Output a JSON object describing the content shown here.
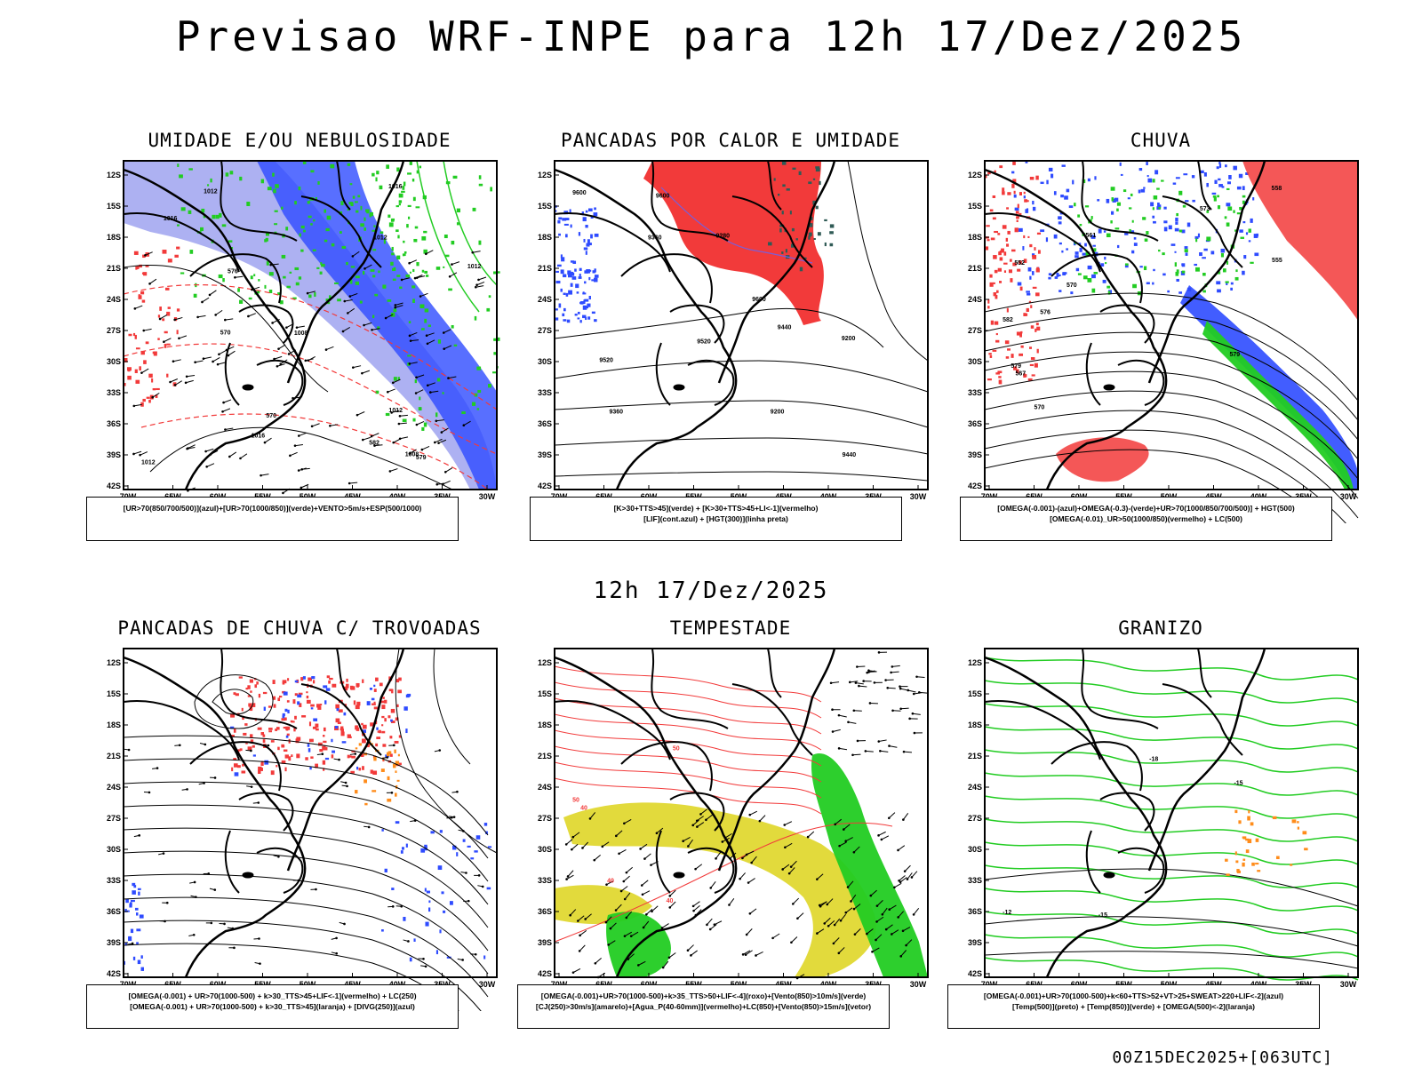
{
  "header": {
    "title": "Previsao WRF-INPE  para 12h 17/Dez/2025",
    "mid_title": "12h 17/Dez/2025",
    "footer": "00Z15DEC2025+[063UTC]"
  },
  "axes": {
    "lat_labels": [
      "12S",
      "15S",
      "18S",
      "21S",
      "24S",
      "27S",
      "30S",
      "33S",
      "36S",
      "39S",
      "42S"
    ],
    "lon_labels": [
      "70W",
      "65W",
      "60W",
      "55W",
      "50W",
      "45W",
      "40W",
      "35W",
      "30W"
    ]
  },
  "colors": {
    "blue": "#2e4bff",
    "lightblue": "#9fa3f0",
    "green": "#22cc22",
    "red": "#f23a3a",
    "yellow": "#e0d832",
    "orange": "#ff8c1a",
    "darkteal": "#2f5a55",
    "purple": "#7a5ed8"
  },
  "panels": [
    {
      "title": "UMIDADE E/OU NEBULOSIDADE",
      "legend": [
        "[UR>70(850/700/500)](azul)+[UR>70(1000/850)](verde)+VENTO>5m/s+ESP(500/1000)"
      ],
      "labels": [
        "1012",
        "1016",
        "1012",
        "1012",
        "1012",
        "1012",
        "1008",
        "1008",
        "1016",
        "1016",
        "576",
        "579",
        "582",
        "570",
        "570"
      ]
    },
    {
      "title": "PANCADAS POR CALOR E UMIDADE",
      "legend": [
        "[K>30+TTS>45](verde) + [K>30+TTS>45+LI<-1](vermelho)",
        "[LIF](cont.azul) + [HGT(300)](linha preta)"
      ],
      "labels": [
        "9600",
        "9520",
        "9600",
        "9520",
        "9440",
        "9440",
        "9360",
        "9360",
        "9280",
        "9200",
        "9200",
        "9600"
      ]
    },
    {
      "title": "CHUVA",
      "legend": [
        "[OMEGA(-0.001)-(azul)+OMEGA(-0.3)-(verde)+UR>70(1000/850/700/500)] + HGT(500)",
        "[OMEGA(-0.01)_UR>50(1000/850)(vermelho) + LC(500)"
      ],
      "labels": [
        "582",
        "579",
        "576",
        "573",
        "570",
        "567",
        "561",
        "558",
        "555",
        "552",
        "570",
        "579"
      ]
    },
    {
      "title": "PANCADAS DE CHUVA C/ TROVOADAS",
      "legend": [
        "[OMEGA(-0.001) + UR>70(1000-500) + k>30_TTS>45+LIF<-1](vermelho) + LC(250)",
        "[OMEGA(-0.001) + UR>70(1000-500) + k>30_TTS>45](laranja) + [DIVG(250)](azul)"
      ],
      "labels": []
    },
    {
      "title": "TEMPESTADE",
      "legend": [
        "[OMEGA(-0.001)+UR>70(1000-500)+k>35_TTS>50+LIF<-4](roxo)+[Vento(850)>10m/s](verde)",
        "[CJ(250)>30m/s](amarelo)+[Agua_P(40-60mm)](vermelho)+LC(850)+[Vento(850)>15m/s](vetor)"
      ],
      "labels": [
        "50",
        "40",
        "40",
        "50",
        "40"
      ]
    },
    {
      "title": "GRANIZO",
      "legend": [
        "[OMEGA(-0.001)+UR>70(1000-500)+k<60+TTS>52+VT>25+SWEAT>220+LIF<-2](azul)",
        "[Temp(500)](preto) + [Temp(850)](verde) + [OMEGA(500)<-2](laranja)"
      ],
      "labels": [
        "-12",
        "-15",
        "-15",
        "-18"
      ]
    }
  ]
}
